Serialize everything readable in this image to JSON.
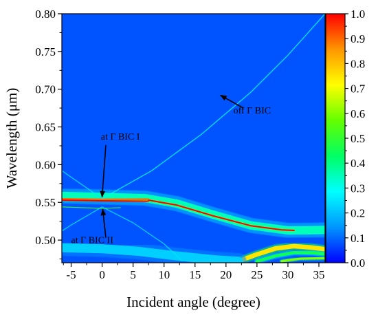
{
  "chart_data": {
    "type": "heatmap",
    "title": "",
    "xlabel": "Incident angle (degree)",
    "ylabel": "Wavelength (μm)",
    "xlim": [
      -6.5,
      36
    ],
    "ylim": [
      0.47,
      0.8
    ],
    "x_ticks": [
      -5,
      0,
      5,
      10,
      15,
      20,
      25,
      30,
      35
    ],
    "x_tick_labels": [
      "-5",
      "0",
      "5",
      "10",
      "15",
      "20",
      "25",
      "30",
      "35"
    ],
    "y_ticks": [
      0.5,
      0.55,
      0.6,
      0.65,
      0.7,
      0.75,
      0.8
    ],
    "y_tick_labels": [
      "0.50",
      "0.55",
      "0.60",
      "0.65",
      "0.70",
      "0.75",
      "0.80"
    ],
    "colorbar": {
      "range": [
        0.0,
        1.0
      ],
      "ticks": [
        0.0,
        0.1,
        0.2,
        0.3,
        0.4,
        0.5,
        0.6,
        0.7,
        0.8,
        0.9,
        1.0
      ],
      "tick_labels": [
        "0.0",
        "0.1",
        "0.2",
        "0.3",
        "0.4",
        "0.5",
        "0.6",
        "0.7",
        "0.8",
        "0.9",
        "1.0"
      ],
      "colors": [
        "#0000ff",
        "#0096ff",
        "#00ffff",
        "#00ff64",
        "#64ff00",
        "#ffff00",
        "#ff9600",
        "#ff0000"
      ]
    },
    "background_value": 0.08,
    "bands": [
      {
        "points": [
          [
            -6.5,
            0.5585
          ],
          [
            0,
            0.5572
          ],
          [
            7,
            0.5555
          ],
          [
            12,
            0.5485
          ],
          [
            18,
            0.5335
          ],
          [
            24,
            0.5195
          ],
          [
            30,
            0.5128
          ],
          [
            33,
            0.513
          ],
          [
            36,
            0.5135
          ]
        ],
        "value": 0.35,
        "width": 0.011
      },
      {
        "points": [
          [
            -6.5,
            0.5545
          ],
          [
            0,
            0.5538
          ],
          [
            7.5,
            0.554
          ]
        ],
        "value": 0.9,
        "width": 0.0025
      },
      {
        "points": [
          [
            -6.5,
            0.553
          ],
          [
            0,
            0.552
          ],
          [
            7.5,
            0.5515
          ]
        ],
        "value": 1.0,
        "width": 0.0018
      },
      {
        "points": [
          [
            7.5,
            0.553
          ],
          [
            12,
            0.5465
          ],
          [
            18,
            0.532
          ],
          [
            24,
            0.519
          ],
          [
            29,
            0.5135
          ],
          [
            31,
            0.5128
          ]
        ],
        "value": 1.0,
        "width": 0.0018
      },
      {
        "points": [
          [
            22,
            0.472
          ],
          [
            25,
            0.481
          ],
          [
            28,
            0.489
          ],
          [
            31,
            0.492
          ],
          [
            34,
            0.49
          ],
          [
            36,
            0.488
          ]
        ],
        "value": 0.75,
        "width": 0.006
      },
      {
        "points": [
          [
            25,
            0.472
          ],
          [
            28,
            0.479
          ],
          [
            31,
            0.4835
          ],
          [
            34,
            0.483
          ],
          [
            36,
            0.4815
          ]
        ],
        "value": 0.45,
        "width": 0.004
      },
      {
        "points": [
          [
            29,
            0.472
          ],
          [
            32,
            0.4755
          ],
          [
            36,
            0.476
          ]
        ],
        "value": 0.6,
        "width": 0.003
      },
      {
        "points": [
          [
            -6.5,
            0.49
          ],
          [
            0,
            0.4885
          ],
          [
            6,
            0.485
          ],
          [
            12,
            0.479
          ],
          [
            18,
            0.474
          ],
          [
            22,
            0.472
          ]
        ],
        "value": 0.22,
        "width": 0.012
      }
    ],
    "lines": [
      {
        "points": [
          [
            0,
            0.555
          ],
          [
            8,
            0.592
          ],
          [
            16,
            0.64
          ],
          [
            24,
            0.696
          ],
          [
            30,
            0.745
          ],
          [
            36,
            0.8
          ]
        ],
        "value": 0.3
      },
      {
        "points": [
          [
            0,
            0.555
          ],
          [
            -6.5,
            0.592
          ]
        ],
        "value": 0.25
      },
      {
        "points": [
          [
            0,
            0.544
          ],
          [
            5,
            0.523
          ],
          [
            10,
            0.495
          ],
          [
            13,
            0.472
          ]
        ],
        "value": 0.25
      },
      {
        "points": [
          [
            0,
            0.544
          ],
          [
            -5,
            0.52
          ],
          [
            -6.5,
            0.512
          ]
        ],
        "value": 0.25
      },
      {
        "points": [
          [
            -6.5,
            0.544
          ],
          [
            0,
            0.542
          ],
          [
            3,
            0.543
          ]
        ],
        "value": 0.5
      }
    ],
    "annotations": [
      {
        "text": "at Γ BIC I",
        "text_at": [
          -0.2,
          0.633
        ],
        "arrow_from": [
          0.6,
          0.626
        ],
        "arrow_to": [
          0,
          0.557
        ]
      },
      {
        "text": "at Γ BIC II",
        "text_at": [
          -5,
          0.496
        ],
        "arrow_from": [
          0.6,
          0.503
        ],
        "arrow_to": [
          0.1,
          0.541
        ]
      },
      {
        "text": "off Γ BIC",
        "text_at": [
          21.2,
          0.668
        ],
        "arrow_from": [
          22.8,
          0.675
        ],
        "arrow_to": [
          19.1,
          0.692
        ]
      }
    ]
  }
}
